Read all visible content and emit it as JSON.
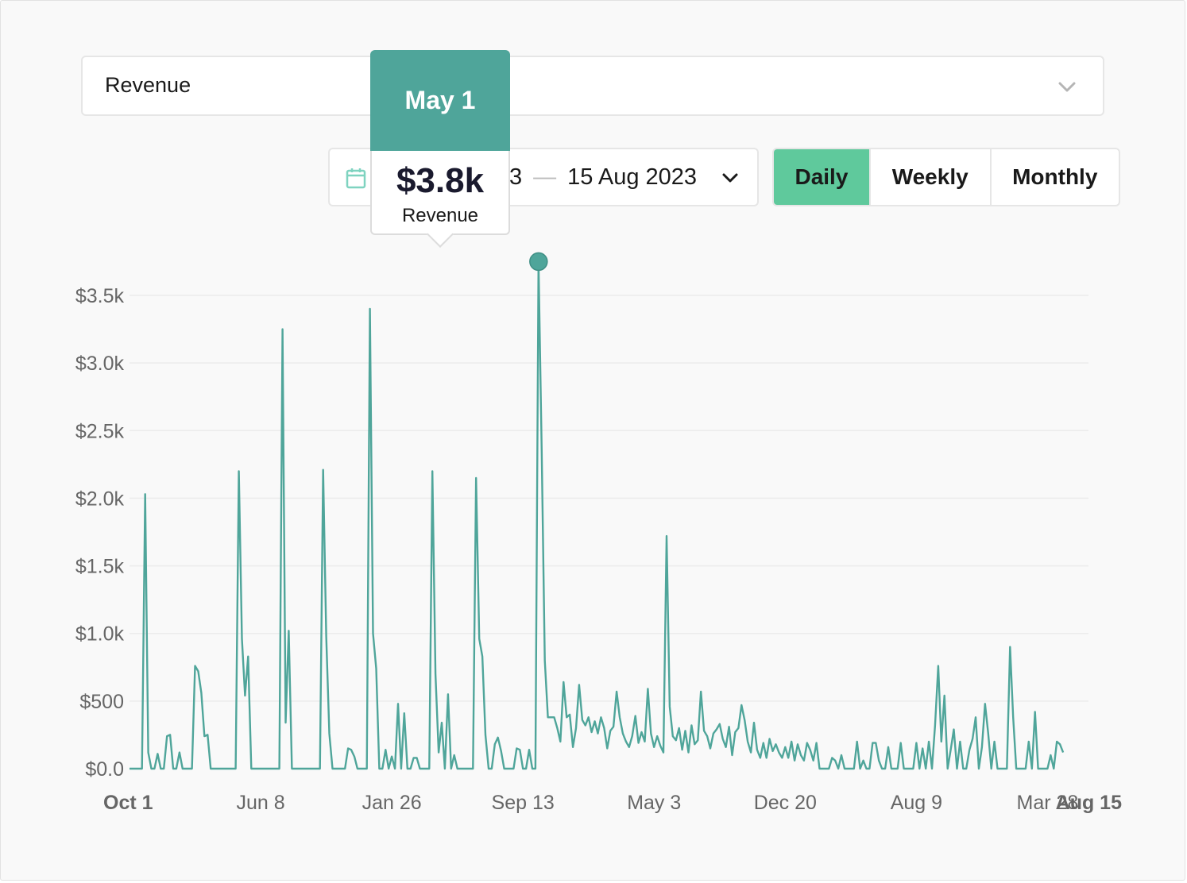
{
  "metric_select": {
    "selected": "Revenue"
  },
  "date_range": {
    "text_visible": "3",
    "end": "15 Aug 2023"
  },
  "granularity": {
    "options": [
      "Daily",
      "Weekly",
      "Monthly"
    ],
    "active": "Daily"
  },
  "tooltip": {
    "date": "May 1",
    "value": "$3.8k",
    "metric": "Revenue"
  },
  "colors": {
    "series": "#4fa59a",
    "active_toggle": "#5fc99c",
    "tooltip_header": "#4fa59a"
  },
  "chart_data": {
    "type": "line",
    "series": [
      {
        "name": "Revenue",
        "spikes": [
          {
            "i": 5,
            "v": 2030
          },
          {
            "i": 6,
            "v": 120
          },
          {
            "i": 9,
            "v": 110
          },
          {
            "i": 12,
            "v": 240
          },
          {
            "i": 13,
            "v": 250
          },
          {
            "i": 16,
            "v": 120
          },
          {
            "i": 21,
            "v": 760
          },
          {
            "i": 22,
            "v": 720
          },
          {
            "i": 23,
            "v": 560
          },
          {
            "i": 24,
            "v": 240
          },
          {
            "i": 25,
            "v": 250
          },
          {
            "i": 35,
            "v": 2200
          },
          {
            "i": 36,
            "v": 960
          },
          {
            "i": 37,
            "v": 540
          },
          {
            "i": 38,
            "v": 830
          },
          {
            "i": 49,
            "v": 3250
          },
          {
            "i": 50,
            "v": 340
          },
          {
            "i": 51,
            "v": 1020
          },
          {
            "i": 62,
            "v": 2210
          },
          {
            "i": 63,
            "v": 980
          },
          {
            "i": 64,
            "v": 260
          },
          {
            "i": 70,
            "v": 150
          },
          {
            "i": 71,
            "v": 140
          },
          {
            "i": 72,
            "v": 90
          },
          {
            "i": 77,
            "v": 3400
          },
          {
            "i": 78,
            "v": 1000
          },
          {
            "i": 79,
            "v": 740
          },
          {
            "i": 82,
            "v": 140
          },
          {
            "i": 84,
            "v": 90
          },
          {
            "i": 86,
            "v": 480
          },
          {
            "i": 88,
            "v": 410
          },
          {
            "i": 91,
            "v": 80
          },
          {
            "i": 92,
            "v": 80
          },
          {
            "i": 97,
            "v": 2200
          },
          {
            "i": 98,
            "v": 700
          },
          {
            "i": 99,
            "v": 120
          },
          {
            "i": 100,
            "v": 340
          },
          {
            "i": 102,
            "v": 550
          },
          {
            "i": 104,
            "v": 100
          },
          {
            "i": 111,
            "v": 2150
          },
          {
            "i": 112,
            "v": 960
          },
          {
            "i": 113,
            "v": 830
          },
          {
            "i": 114,
            "v": 250
          },
          {
            "i": 117,
            "v": 180
          },
          {
            "i": 118,
            "v": 230
          },
          {
            "i": 119,
            "v": 130
          },
          {
            "i": 124,
            "v": 150
          },
          {
            "i": 125,
            "v": 140
          },
          {
            "i": 128,
            "v": 140
          },
          {
            "i": 131,
            "v": 3750
          },
          {
            "i": 132,
            "v": 2350
          },
          {
            "i": 133,
            "v": 800
          },
          {
            "i": 134,
            "v": 380
          },
          {
            "i": 135,
            "v": 380
          },
          {
            "i": 136,
            "v": 380
          },
          {
            "i": 137,
            "v": 300
          },
          {
            "i": 138,
            "v": 200
          },
          {
            "i": 139,
            "v": 640
          },
          {
            "i": 140,
            "v": 380
          },
          {
            "i": 141,
            "v": 400
          },
          {
            "i": 142,
            "v": 160
          },
          {
            "i": 143,
            "v": 300
          },
          {
            "i": 144,
            "v": 620
          },
          {
            "i": 145,
            "v": 360
          },
          {
            "i": 146,
            "v": 320
          },
          {
            "i": 147,
            "v": 380
          },
          {
            "i": 148,
            "v": 270
          },
          {
            "i": 149,
            "v": 350
          },
          {
            "i": 150,
            "v": 260
          },
          {
            "i": 151,
            "v": 380
          },
          {
            "i": 152,
            "v": 300
          },
          {
            "i": 153,
            "v": 150
          },
          {
            "i": 154,
            "v": 280
          },
          {
            "i": 155,
            "v": 310
          },
          {
            "i": 156,
            "v": 570
          },
          {
            "i": 157,
            "v": 380
          },
          {
            "i": 158,
            "v": 260
          },
          {
            "i": 159,
            "v": 200
          },
          {
            "i": 160,
            "v": 160
          },
          {
            "i": 161,
            "v": 240
          },
          {
            "i": 162,
            "v": 390
          },
          {
            "i": 163,
            "v": 190
          },
          {
            "i": 164,
            "v": 270
          },
          {
            "i": 165,
            "v": 200
          },
          {
            "i": 166,
            "v": 590
          },
          {
            "i": 167,
            "v": 260
          },
          {
            "i": 168,
            "v": 160
          },
          {
            "i": 169,
            "v": 240
          },
          {
            "i": 170,
            "v": 170
          },
          {
            "i": 171,
            "v": 120
          },
          {
            "i": 172,
            "v": 1720
          },
          {
            "i": 173,
            "v": 460
          },
          {
            "i": 174,
            "v": 240
          },
          {
            "i": 175,
            "v": 210
          },
          {
            "i": 176,
            "v": 300
          },
          {
            "i": 177,
            "v": 140
          },
          {
            "i": 178,
            "v": 280
          },
          {
            "i": 179,
            "v": 120
          },
          {
            "i": 180,
            "v": 320
          },
          {
            "i": 181,
            "v": 180
          },
          {
            "i": 182,
            "v": 210
          },
          {
            "i": 183,
            "v": 570
          },
          {
            "i": 184,
            "v": 280
          },
          {
            "i": 185,
            "v": 240
          },
          {
            "i": 186,
            "v": 150
          },
          {
            "i": 187,
            "v": 260
          },
          {
            "i": 188,
            "v": 290
          },
          {
            "i": 189,
            "v": 330
          },
          {
            "i": 190,
            "v": 220
          },
          {
            "i": 191,
            "v": 160
          },
          {
            "i": 192,
            "v": 310
          },
          {
            "i": 193,
            "v": 100
          },
          {
            "i": 194,
            "v": 270
          },
          {
            "i": 195,
            "v": 300
          },
          {
            "i": 196,
            "v": 470
          },
          {
            "i": 197,
            "v": 360
          },
          {
            "i": 198,
            "v": 200
          },
          {
            "i": 199,
            "v": 120
          },
          {
            "i": 200,
            "v": 340
          },
          {
            "i": 201,
            "v": 140
          },
          {
            "i": 202,
            "v": 80
          },
          {
            "i": 203,
            "v": 190
          },
          {
            "i": 204,
            "v": 80
          },
          {
            "i": 205,
            "v": 220
          },
          {
            "i": 206,
            "v": 130
          },
          {
            "i": 207,
            "v": 180
          },
          {
            "i": 208,
            "v": 120
          },
          {
            "i": 209,
            "v": 80
          },
          {
            "i": 210,
            "v": 160
          },
          {
            "i": 211,
            "v": 80
          },
          {
            "i": 212,
            "v": 200
          },
          {
            "i": 213,
            "v": 60
          },
          {
            "i": 214,
            "v": 180
          },
          {
            "i": 215,
            "v": 100
          },
          {
            "i": 216,
            "v": 60
          },
          {
            "i": 217,
            "v": 190
          },
          {
            "i": 218,
            "v": 140
          },
          {
            "i": 219,
            "v": 60
          },
          {
            "i": 220,
            "v": 190
          },
          {
            "i": 225,
            "v": 80
          },
          {
            "i": 226,
            "v": 60
          },
          {
            "i": 228,
            "v": 100
          },
          {
            "i": 233,
            "v": 200
          },
          {
            "i": 235,
            "v": 60
          },
          {
            "i": 238,
            "v": 190
          },
          {
            "i": 239,
            "v": 190
          },
          {
            "i": 240,
            "v": 60
          },
          {
            "i": 243,
            "v": 160
          },
          {
            "i": 247,
            "v": 190
          },
          {
            "i": 252,
            "v": 190
          },
          {
            "i": 254,
            "v": 150
          },
          {
            "i": 256,
            "v": 200
          },
          {
            "i": 258,
            "v": 320
          },
          {
            "i": 259,
            "v": 760
          },
          {
            "i": 260,
            "v": 200
          },
          {
            "i": 261,
            "v": 540
          },
          {
            "i": 263,
            "v": 140
          },
          {
            "i": 264,
            "v": 290
          },
          {
            "i": 266,
            "v": 200
          },
          {
            "i": 269,
            "v": 140
          },
          {
            "i": 270,
            "v": 220
          },
          {
            "i": 271,
            "v": 380
          },
          {
            "i": 273,
            "v": 160
          },
          {
            "i": 274,
            "v": 480
          },
          {
            "i": 275,
            "v": 260
          },
          {
            "i": 277,
            "v": 200
          },
          {
            "i": 282,
            "v": 900
          },
          {
            "i": 283,
            "v": 380
          },
          {
            "i": 288,
            "v": 200
          },
          {
            "i": 290,
            "v": 420
          },
          {
            "i": 295,
            "v": 100
          },
          {
            "i": 297,
            "v": 200
          },
          {
            "i": 298,
            "v": 180
          },
          {
            "i": 299,
            "v": 120
          }
        ]
      }
    ],
    "n_points": 300,
    "y_ticks": [
      "$0.0",
      "$500",
      "$1.0k",
      "$1.5k",
      "$2.0k",
      "$2.5k",
      "$3.0k",
      "$3.5k"
    ],
    "y_tick_values": [
      0,
      500,
      1000,
      1500,
      2000,
      2500,
      3000,
      3500
    ],
    "ylim": [
      0,
      3500
    ],
    "x_ticks": [
      "Oct 1",
      "Jun 8",
      "Jan 26",
      "Sep 13",
      "May 3",
      "Dec 20",
      "Aug 9",
      "Mar 28",
      "Aug 15"
    ],
    "x_tick_index": [
      0,
      42,
      84,
      126,
      168,
      210,
      252,
      294,
      314
    ],
    "x_tick_bold": [
      true,
      false,
      false,
      false,
      false,
      false,
      false,
      false,
      true
    ],
    "highlight_index": 131,
    "grid": true
  }
}
